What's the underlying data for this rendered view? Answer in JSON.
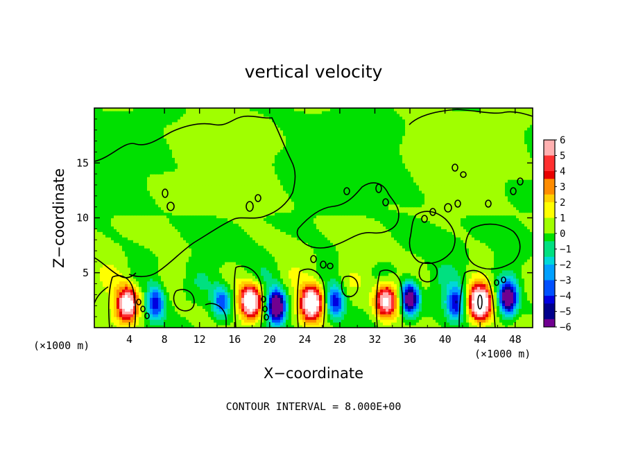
{
  "chart_data": {
    "type": "heatmap",
    "title": "vertical velocity",
    "xlabel": "X−coordinate",
    "ylabel": "Z−coordinate",
    "x_unit": "(×1000 m)",
    "x_unit_right": "(×1000 m)",
    "xlim": [
      0,
      50
    ],
    "ylim": [
      0,
      20
    ],
    "x_ticks": [
      4,
      8,
      12,
      16,
      20,
      24,
      28,
      32,
      36,
      40,
      44,
      48
    ],
    "y_ticks": [
      5,
      10,
      15
    ],
    "colorbar": {
      "min": -6,
      "max": 6,
      "labels": [
        "6",
        "5",
        "4",
        "3",
        "2",
        "1",
        "0",
        "−1",
        "−2",
        "−3",
        "−4",
        "−5",
        "−6"
      ],
      "colors": [
        "#ffb0b0",
        "#ff3030",
        "#e80000",
        "#ff8c00",
        "#ffd000",
        "#ffff00",
        "#a0ff00",
        "#00e000",
        "#00e080",
        "#00d8d8",
        "#00a0ff",
        "#0050ff",
        "#0000e0",
        "#00008c",
        "#700090",
        "#ffffff"
      ]
    },
    "features": {
      "updrafts": [
        {
          "x": 3.8,
          "z": 2.2,
          "peak": 8
        },
        {
          "x": 17.8,
          "z": 2.4,
          "peak": 9
        },
        {
          "x": 24.8,
          "z": 2.3,
          "peak": 9
        },
        {
          "x": 33.3,
          "z": 2.5,
          "peak": 7
        },
        {
          "x": 44.0,
          "z": 2.3,
          "peak": 10
        }
      ],
      "downdrafts": [
        {
          "x": 7.0,
          "z": 2.3,
          "peak": -5
        },
        {
          "x": 14.5,
          "z": 2.4,
          "peak": -4
        },
        {
          "x": 20.8,
          "z": 2.0,
          "peak": -9
        },
        {
          "x": 27.5,
          "z": 2.4,
          "peak": -5
        },
        {
          "x": 36.0,
          "z": 2.7,
          "peak": -8
        },
        {
          "x": 41.2,
          "z": 2.3,
          "peak": -5
        },
        {
          "x": 47.2,
          "z": 2.7,
          "peak": -8
        }
      ]
    },
    "contour_interval": "CONTOUR INTERVAL = 8.000E+00"
  }
}
